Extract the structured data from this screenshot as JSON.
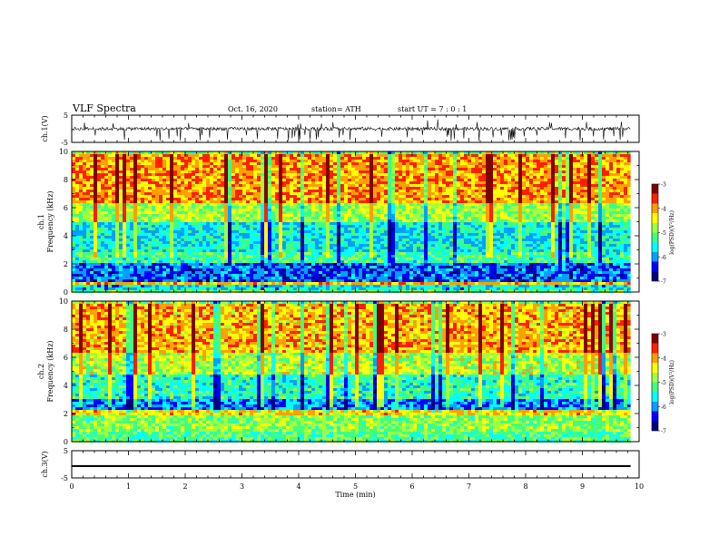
{
  "header": {
    "title": "VLF Spectra",
    "date": "Oct. 16, 2020",
    "station": "station= ATH",
    "start": "start  UT =  7 : 0  : 1"
  },
  "colors": {
    "waveform": "#000000",
    "spectrogram_palette": [
      "#000080",
      "#0000ff",
      "#00a0ff",
      "#00ffff",
      "#40ff80",
      "#a0ff40",
      "#ffff00",
      "#ffa000",
      "#ff2000",
      "#800000"
    ]
  },
  "chart_data": [
    {
      "type": "line",
      "panel": "ch1-waveform",
      "ylabel": "ch.1(V)",
      "yticks": [
        "5",
        "-5"
      ],
      "ylim": [
        -5,
        5
      ],
      "xlim": [
        0,
        10
      ],
      "series_description_values": {
        "baseline": 0,
        "typical_spike_min": -4.5,
        "typical_spike_max": 3.5
      },
      "data_end_min": 9.85
    },
    {
      "type": "heatmap",
      "panel": "ch1-spectrogram",
      "ylabel": "ch.1\nFrequency  (kHz)",
      "yticks": [
        "0",
        "2",
        "4",
        "6",
        "8",
        "10"
      ],
      "ylim": [
        0,
        10
      ],
      "xlim": [
        0,
        10
      ],
      "colorbar": {
        "label": "log(PSD)(V²/Hz)",
        "ticks": [
          "-3",
          "-4",
          "-5",
          "-6",
          "-7"
        ],
        "range": [
          -7,
          -3
        ]
      },
      "bands": [
        {
          "f0": 0.0,
          "f1": 0.3,
          "level": -5.0
        },
        {
          "f0": 0.3,
          "f1": 0.7,
          "level": -5.7
        },
        {
          "f0": 0.7,
          "f1": 0.9,
          "level": -4.2
        },
        {
          "f0": 0.9,
          "f1": 2.2,
          "level": -6.2
        },
        {
          "f0": 2.2,
          "f1": 3.0,
          "level": -5.3
        },
        {
          "f0": 3.0,
          "f1": 5.0,
          "level": -5.6
        },
        {
          "f0": 5.0,
          "f1": 6.5,
          "level": -4.8
        },
        {
          "f0": 6.5,
          "f1": 10.0,
          "level": -4.0
        }
      ]
    },
    {
      "type": "heatmap",
      "panel": "ch2-spectrogram",
      "ylabel": "ch.2\nFrequency  (kHz)",
      "yticks": [
        "0",
        "2",
        "4",
        "6",
        "8",
        "10"
      ],
      "ylim": [
        0,
        10
      ],
      "xlim": [
        0,
        10
      ],
      "colorbar": {
        "label": "log(PSD)(V²/Hz)",
        "ticks": [
          "-3",
          "-4",
          "-5",
          "-6",
          "-7"
        ],
        "range": [
          -7,
          -3
        ]
      },
      "bands": [
        {
          "f0": 0.0,
          "f1": 0.8,
          "level": -5.2
        },
        {
          "f0": 0.8,
          "f1": 1.9,
          "level": -4.9
        },
        {
          "f0": 1.9,
          "f1": 2.3,
          "level": -4.3
        },
        {
          "f0": 2.3,
          "f1": 3.2,
          "level": -6.0
        },
        {
          "f0": 3.2,
          "f1": 4.8,
          "level": -5.4
        },
        {
          "f0": 4.8,
          "f1": 6.5,
          "level": -4.7
        },
        {
          "f0": 6.5,
          "f1": 10.0,
          "level": -4.1
        }
      ]
    },
    {
      "type": "line",
      "panel": "ch3-waveform",
      "ylabel": "ch.3(V)",
      "yticks": [
        "5",
        "-5"
      ],
      "ylim": [
        -5,
        5
      ],
      "xlim": [
        0,
        10
      ],
      "value_min": -1.0,
      "value_max": -0.3,
      "data_end_min": 9.85
    }
  ],
  "xaxis": {
    "label": "Time  (min)",
    "ticks": [
      "0",
      "1",
      "2",
      "3",
      "4",
      "5",
      "6",
      "7",
      "8",
      "9",
      "10"
    ]
  }
}
